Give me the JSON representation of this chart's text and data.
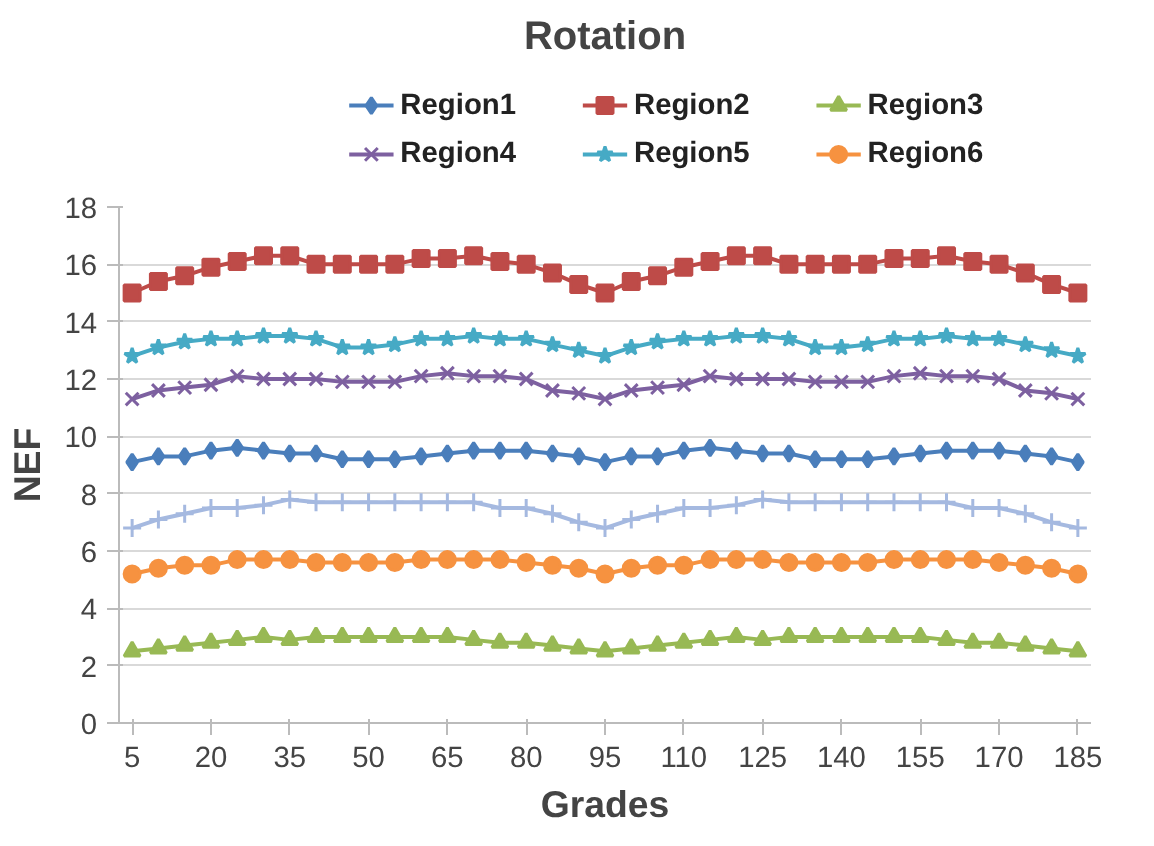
{
  "chart_data": {
    "type": "line",
    "title": "Rotation",
    "xlabel": "Grades",
    "ylabel": "NEF",
    "x": [
      5,
      10,
      15,
      20,
      25,
      30,
      35,
      40,
      45,
      50,
      55,
      60,
      65,
      70,
      75,
      80,
      85,
      90,
      95,
      100,
      105,
      110,
      115,
      120,
      125,
      130,
      135,
      140,
      145,
      150,
      155,
      160,
      165,
      170,
      175,
      180,
      185
    ],
    "xlim": [
      2.5,
      187.5
    ],
    "xticks": [
      5,
      20,
      35,
      50,
      65,
      80,
      95,
      110,
      125,
      140,
      155,
      170,
      185
    ],
    "ylim": [
      0,
      18
    ],
    "yticks": [
      0,
      2,
      4,
      6,
      8,
      10,
      12,
      14,
      16,
      18
    ],
    "grid": "y",
    "legend": "top",
    "series": [
      {
        "name": "Region1",
        "color": "#4a7ebb",
        "marker": "diamond",
        "values": [
          9.1,
          9.3,
          9.3,
          9.5,
          9.6,
          9.5,
          9.4,
          9.4,
          9.2,
          9.2,
          9.2,
          9.3,
          9.4,
          9.5,
          9.5,
          9.5,
          9.4,
          9.3,
          9.1,
          9.3,
          9.3,
          9.5,
          9.6,
          9.5,
          9.4,
          9.4,
          9.2,
          9.2,
          9.2,
          9.3,
          9.4,
          9.5,
          9.5,
          9.5,
          9.4,
          9.3,
          9.1
        ]
      },
      {
        "name": "Region2",
        "color": "#be4b48",
        "marker": "square",
        "values": [
          15.0,
          15.4,
          15.6,
          15.9,
          16.1,
          16.3,
          16.3,
          16.0,
          16.0,
          16.0,
          16.0,
          16.2,
          16.2,
          16.3,
          16.1,
          16.0,
          15.7,
          15.3,
          15.0,
          15.4,
          15.6,
          15.9,
          16.1,
          16.3,
          16.3,
          16.0,
          16.0,
          16.0,
          16.0,
          16.2,
          16.2,
          16.3,
          16.1,
          16.0,
          15.7,
          15.3,
          15.0
        ]
      },
      {
        "name": "Region3",
        "color": "#98b954",
        "marker": "triangle",
        "values": [
          2.5,
          2.6,
          2.7,
          2.8,
          2.9,
          3.0,
          2.9,
          3.0,
          3.0,
          3.0,
          3.0,
          3.0,
          3.0,
          2.9,
          2.8,
          2.8,
          2.7,
          2.6,
          2.5,
          2.6,
          2.7,
          2.8,
          2.9,
          3.0,
          2.9,
          3.0,
          3.0,
          3.0,
          3.0,
          3.0,
          3.0,
          2.9,
          2.8,
          2.8,
          2.7,
          2.6,
          2.5
        ]
      },
      {
        "name": "Region4",
        "color": "#7d60a0",
        "marker": "x",
        "values": [
          11.3,
          11.6,
          11.7,
          11.8,
          12.1,
          12.0,
          12.0,
          12.0,
          11.9,
          11.9,
          11.9,
          12.1,
          12.2,
          12.1,
          12.1,
          12.0,
          11.6,
          11.5,
          11.3,
          11.6,
          11.7,
          11.8,
          12.1,
          12.0,
          12.0,
          12.0,
          11.9,
          11.9,
          11.9,
          12.1,
          12.2,
          12.1,
          12.1,
          12.0,
          11.6,
          11.5,
          11.3
        ]
      },
      {
        "name": "Region5",
        "color": "#46aac5",
        "marker": "star",
        "values": [
          12.8,
          13.1,
          13.3,
          13.4,
          13.4,
          13.5,
          13.5,
          13.4,
          13.1,
          13.1,
          13.2,
          13.4,
          13.4,
          13.5,
          13.4,
          13.4,
          13.2,
          13.0,
          12.8,
          13.1,
          13.3,
          13.4,
          13.4,
          13.5,
          13.5,
          13.4,
          13.1,
          13.1,
          13.2,
          13.4,
          13.4,
          13.5,
          13.4,
          13.4,
          13.2,
          13.0,
          12.8
        ]
      },
      {
        "name": "Region6",
        "color": "#f69240",
        "marker": "circle",
        "values": [
          5.2,
          5.4,
          5.5,
          5.5,
          5.7,
          5.7,
          5.7,
          5.6,
          5.6,
          5.6,
          5.6,
          5.7,
          5.7,
          5.7,
          5.7,
          5.6,
          5.5,
          5.4,
          5.2,
          5.4,
          5.5,
          5.5,
          5.7,
          5.7,
          5.7,
          5.6,
          5.6,
          5.6,
          5.6,
          5.7,
          5.7,
          5.7,
          5.7,
          5.6,
          5.5,
          5.4,
          5.2
        ]
      },
      {
        "color": "#a5b9e0",
        "marker": "cross",
        "values": [
          6.8,
          7.1,
          7.3,
          7.5,
          7.5,
          7.6,
          7.8,
          7.7,
          7.7,
          7.7,
          7.7,
          7.7,
          7.7,
          7.7,
          7.5,
          7.5,
          7.3,
          7.0,
          6.8,
          7.1,
          7.3,
          7.5,
          7.5,
          7.6,
          7.8,
          7.7,
          7.7,
          7.7,
          7.7,
          7.7,
          7.7,
          7.7,
          7.5,
          7.5,
          7.3,
          7.0,
          6.8
        ]
      }
    ]
  }
}
